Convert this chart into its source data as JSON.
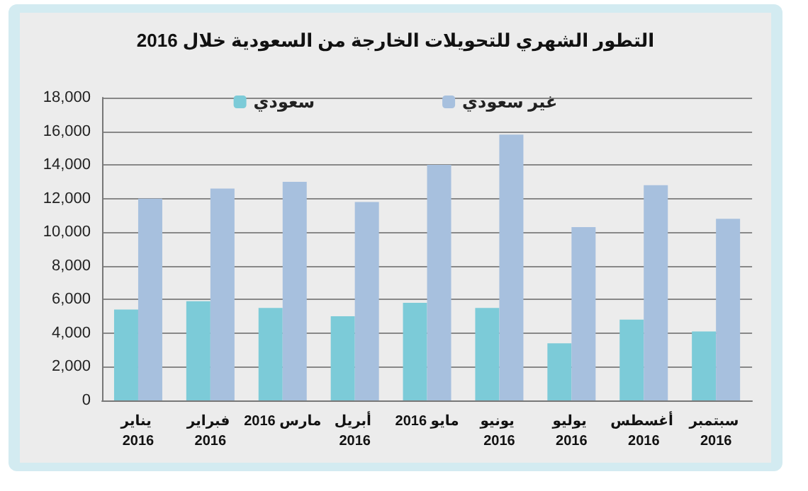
{
  "chart_data": {
    "type": "bar",
    "title": "التطور الشهري للتحويلات الخارجة من السعودية خلال 2016",
    "categories": [
      "يناير 2016",
      "فبراير 2016",
      "مارس 2016",
      "أبريل 2016",
      "مايو 2016",
      "يونيو 2016",
      "يوليو 2016",
      "أغسطس 2016",
      "سبتمبر 2016"
    ],
    "series": [
      {
        "name": "سعودي",
        "color": "#7ccbd8",
        "values": [
          5400,
          5900,
          5500,
          5000,
          5800,
          5500,
          3400,
          4800,
          4100
        ]
      },
      {
        "name": "غير سعودي",
        "color": "#a7c0de",
        "values": [
          12000,
          12600,
          13000,
          11800,
          14000,
          15800,
          10300,
          12800,
          10800
        ]
      }
    ],
    "ylim": [
      0,
      18000
    ],
    "yticks": [
      0,
      {
        "value": 2000,
        "label": "2,000"
      },
      {
        "value": 4000,
        "label": "4,000"
      },
      {
        "value": 6000,
        "label": "6,000"
      },
      {
        "value": 8000,
        "label": "8,000"
      },
      {
        "value": 10000,
        "label": "10,000"
      },
      {
        "value": 12000,
        "label": "12,000"
      },
      {
        "value": 14000,
        "label": "14,000"
      },
      {
        "value": 16000,
        "label": "16,000"
      },
      {
        "value": 18000,
        "label": "18,000"
      }
    ],
    "grid": "y",
    "legend": "top"
  }
}
